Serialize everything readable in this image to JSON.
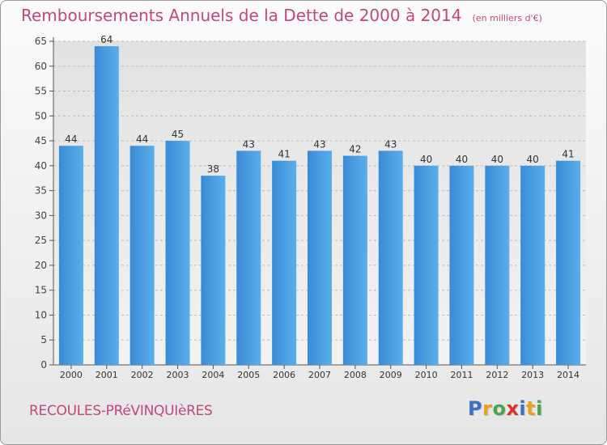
{
  "header": {
    "title": "Remboursements Annuels de la Dette de 2000 à 2014",
    "subtitle": "(en milliers d'€)"
  },
  "footer": {
    "commune": "RECOULES-PRéVINQUIèRES",
    "logo": [
      "P",
      "r",
      "o",
      "x",
      "i",
      "t",
      "i"
    ],
    "logo_colors": [
      "#3a6fc4",
      "#e8a21c",
      "#4aa64a",
      "#d9342b",
      "#3a6fc4",
      "#e8a21c",
      "#4aa64a"
    ]
  },
  "chart_data": {
    "type": "bar",
    "title": "Remboursements Annuels de la Dette de 2000 à 2014",
    "categories": [
      "2000",
      "2001",
      "2002",
      "2003",
      "2004",
      "2005",
      "2006",
      "2007",
      "2008",
      "2009",
      "2010",
      "2011",
      "2012",
      "2013",
      "2014"
    ],
    "values": [
      44,
      64,
      44,
      45,
      38,
      43,
      41,
      43,
      42,
      43,
      40,
      40,
      40,
      40,
      41
    ],
    "ylim": [
      0,
      65
    ],
    "yticks": [
      0,
      5,
      10,
      15,
      20,
      25,
      30,
      35,
      40,
      45,
      50,
      55,
      60,
      65
    ],
    "grid": true,
    "bar_color": "#4a9ee0"
  }
}
